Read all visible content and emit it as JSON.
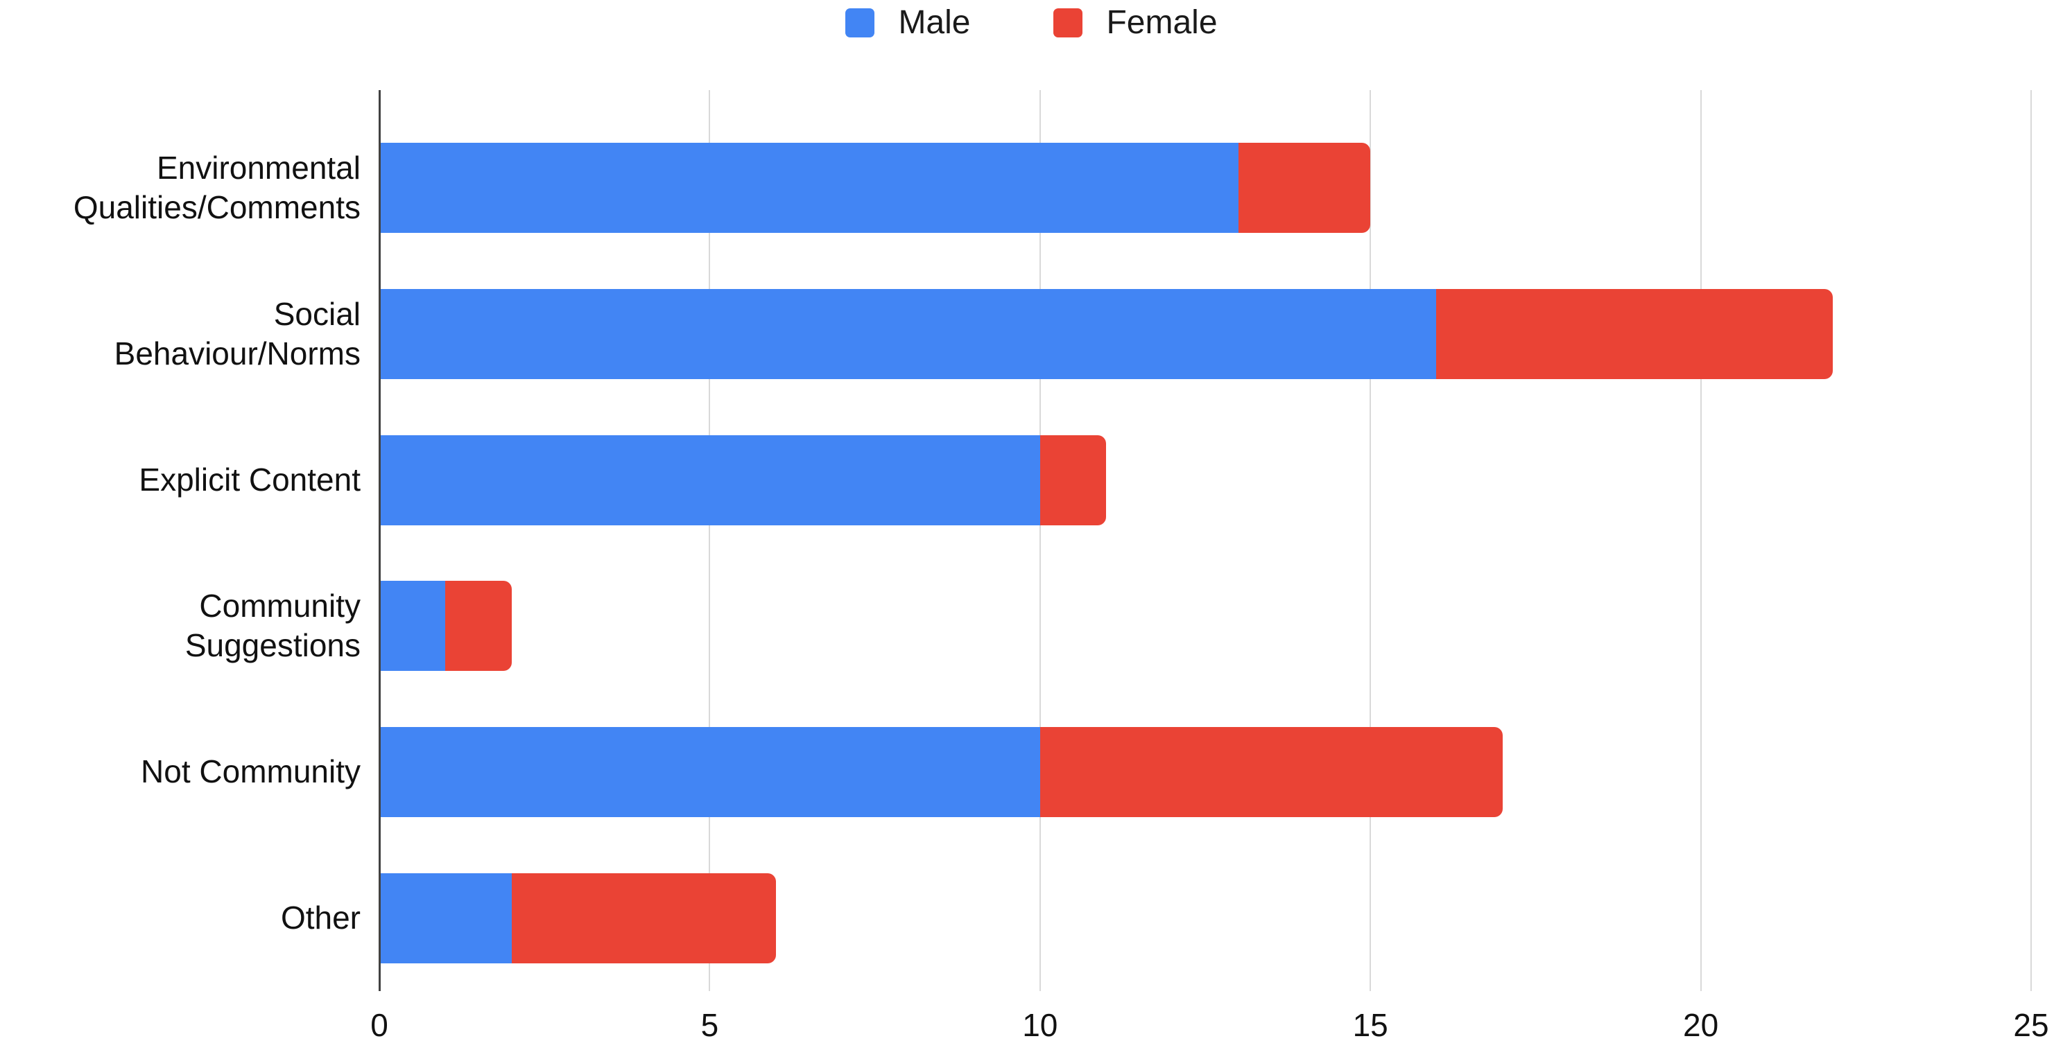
{
  "chart_data": {
    "type": "bar",
    "orientation": "horizontal",
    "stacked": true,
    "title": "",
    "xlabel": "",
    "ylabel": "",
    "categories": [
      "Environmental Qualities/Comments",
      "Social Behaviour/Norms",
      "Explicit Content",
      "Community Suggestions",
      "Not Community",
      "Other"
    ],
    "series": [
      {
        "name": "Male",
        "color": "#4285F4",
        "values": [
          13,
          16,
          10,
          1,
          10,
          2
        ]
      },
      {
        "name": "Female",
        "color": "#EA4335",
        "values": [
          2,
          6,
          1,
          1,
          7,
          4
        ]
      }
    ],
    "stacked_totals": [
      15,
      22,
      11,
      2,
      17,
      6
    ],
    "xlim": [
      0,
      25
    ],
    "x_ticks": [
      0,
      5,
      10,
      15,
      20,
      25
    ],
    "grid": true,
    "gridline_color": "#d9d9d9",
    "axis_line_color": "#424242",
    "legend_position": "top"
  }
}
